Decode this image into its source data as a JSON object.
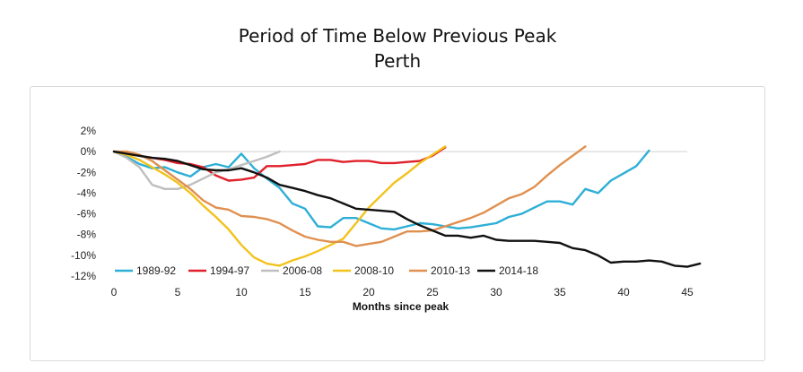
{
  "chart_data": {
    "type": "line",
    "title": "Period of Time Below Previous Peak",
    "subtitle": "Perth",
    "xlabel": "Months since peak",
    "ylabel": "",
    "xlim": [
      0,
      45
    ],
    "ylim": [
      -12,
      2
    ],
    "x_ticks": [
      0,
      5,
      10,
      15,
      20,
      25,
      30,
      35,
      40,
      45
    ],
    "y_ticks": [
      2,
      0,
      -2,
      -4,
      -6,
      -8,
      -10,
      -12
    ],
    "y_tick_labels": [
      "2%",
      "0%",
      "-2%",
      "-4%",
      "-6%",
      "-8%",
      "-10%",
      "-12%"
    ],
    "grid": false,
    "zero_line": true,
    "legend_position": "bottom-left, inside plot",
    "series": [
      {
        "name": "1989-92",
        "color": "#2EAFD6",
        "values": [
          0,
          -0.5,
          -1.2,
          -1.6,
          -1.5,
          -2.0,
          -2.4,
          -1.5,
          -1.2,
          -1.5,
          -0.2,
          -1.6,
          -2.6,
          -3.5,
          -5.0,
          -5.5,
          -7.2,
          -7.3,
          -6.4,
          -6.4,
          -6.9,
          -7.4,
          -7.5,
          -7.2,
          -6.9,
          -7.0,
          -7.2,
          -7.4,
          -7.3,
          -7.1,
          -6.9,
          -6.3,
          -6.0,
          -5.4,
          -4.8,
          -4.8,
          -5.1,
          -3.6,
          -4.0,
          -2.8,
          -2.1,
          -1.4,
          0.1
        ]
      },
      {
        "name": "1994-97",
        "color": "#E0202A",
        "values": [
          0,
          -0.2,
          -0.4,
          -0.6,
          -0.8,
          -1.1,
          -1.2,
          -1.5,
          -2.3,
          -2.8,
          -2.7,
          -2.5,
          -1.4,
          -1.4,
          -1.3,
          -1.2,
          -0.8,
          -0.8,
          -1.0,
          -0.9,
          -0.9,
          -1.1,
          -1.1,
          -1.0,
          -0.9,
          -0.4,
          0.4
        ]
      },
      {
        "name": "2006-08",
        "color": "#BFBFBF",
        "values": [
          0,
          -0.6,
          -1.5,
          -3.2,
          -3.6,
          -3.6,
          -3.2,
          -2.6,
          -2.0,
          -1.7,
          -1.3,
          -0.9,
          -0.5,
          0.0
        ]
      },
      {
        "name": "2008-10",
        "color": "#F2C21C",
        "values": [
          0,
          -0.3,
          -0.8,
          -1.5,
          -2.2,
          -3.0,
          -4.0,
          -5.2,
          -6.3,
          -7.5,
          -9.0,
          -10.2,
          -10.8,
          -11.0,
          -10.5,
          -10.1,
          -9.6,
          -9.0,
          -8.4,
          -6.9,
          -5.4,
          -4.2,
          -3.0,
          -2.1,
          -1.1,
          -0.3,
          0.5
        ]
      },
      {
        "name": "2010-13",
        "color": "#E09050",
        "values": [
          0,
          0.0,
          -0.3,
          -0.9,
          -1.8,
          -2.7,
          -3.6,
          -4.7,
          -5.4,
          -5.6,
          -6.2,
          -6.3,
          -6.5,
          -6.9,
          -7.6,
          -8.2,
          -8.5,
          -8.7,
          -8.7,
          -9.1,
          -8.9,
          -8.7,
          -8.2,
          -7.7,
          -7.7,
          -7.6,
          -7.2,
          -6.8,
          -6.4,
          -5.9,
          -5.2,
          -4.5,
          -4.1,
          -3.4,
          -2.3,
          -1.3,
          -0.4,
          0.5
        ]
      },
      {
        "name": "2014-18",
        "color": "#111111",
        "values": [
          0,
          -0.2,
          -0.4,
          -0.6,
          -0.7,
          -0.9,
          -1.3,
          -1.7,
          -1.8,
          -1.8,
          -1.6,
          -2.0,
          -2.5,
          -3.2,
          -3.5,
          -3.8,
          -4.2,
          -4.5,
          -5.0,
          -5.5,
          -5.6,
          -5.7,
          -5.8,
          -6.5,
          -7.1,
          -7.6,
          -8.1,
          -8.1,
          -8.3,
          -8.1,
          -8.5,
          -8.6,
          -8.6,
          -8.6,
          -8.7,
          -8.8,
          -9.3,
          -9.5,
          -10.0,
          -10.7,
          -10.6,
          -10.6,
          -10.5,
          -10.6,
          -11.0,
          -11.1,
          -10.8
        ]
      }
    ]
  }
}
